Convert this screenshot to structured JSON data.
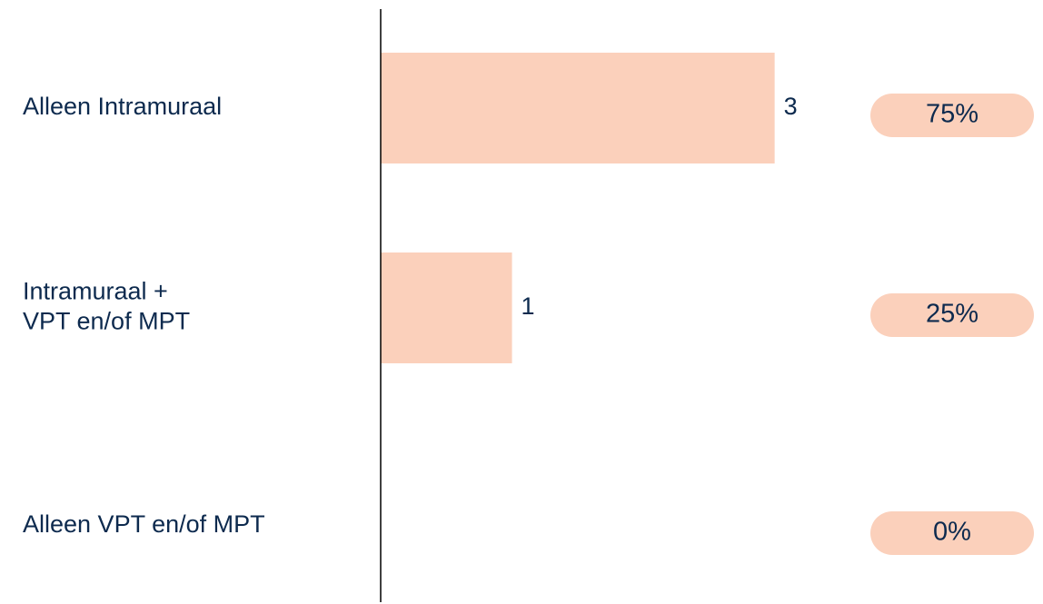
{
  "chart_data": {
    "type": "bar",
    "orientation": "horizontal",
    "categories": [
      [
        "Alleen Intramuraal"
      ],
      [
        "Intramuraal +",
        "VPT en/of MPT"
      ],
      [
        "Alleen VPT en/of MPT"
      ]
    ],
    "values": [
      3,
      1,
      0
    ],
    "value_labels": [
      "3",
      "1",
      ""
    ],
    "percentages": [
      "75%",
      "25%",
      "0%"
    ],
    "xlim": [
      0,
      3.3
    ],
    "grid": false,
    "colors": {
      "bar": "#fbd0bb",
      "pill": "#fbd0bb",
      "text": "#0d2a4e",
      "axis": "#000000"
    }
  }
}
